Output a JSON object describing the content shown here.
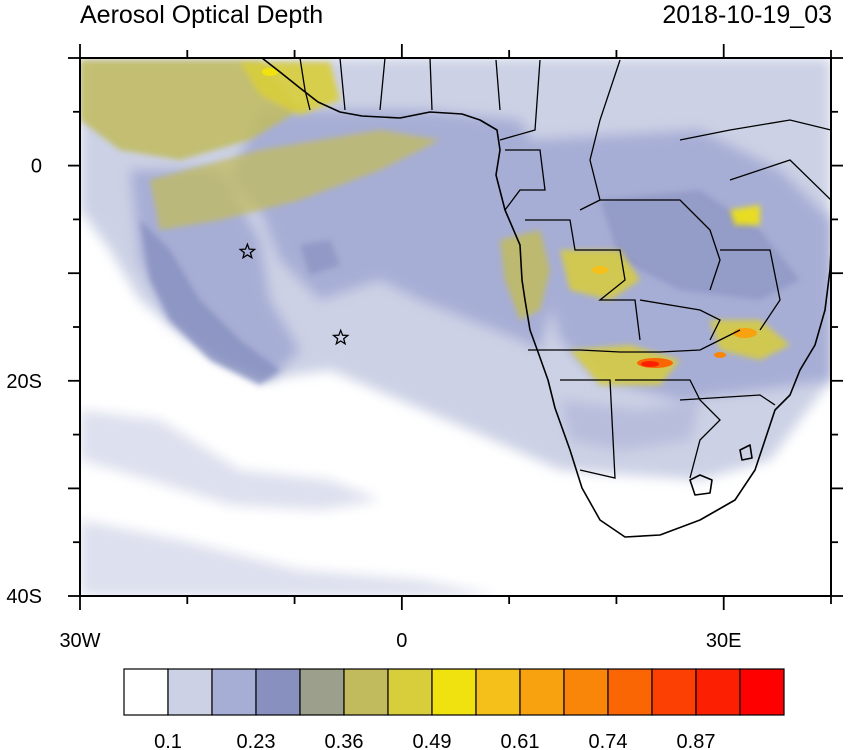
{
  "title": "Aerosol Optical Depth",
  "timestamp": "2018-10-19_03",
  "map": {
    "lon_range": [
      -30,
      40
    ],
    "lat_range": [
      -40,
      10
    ],
    "lon_ticks": [
      {
        "value": -30,
        "label": "30W"
      },
      {
        "value": 0,
        "label": "0"
      },
      {
        "value": 30,
        "label": "30E"
      }
    ],
    "lat_ticks": [
      {
        "value": 0,
        "label": "0"
      },
      {
        "value": -20,
        "label": "20S"
      },
      {
        "value": -40,
        "label": "40S"
      }
    ],
    "stations": [
      {
        "lon": -14.4,
        "lat": -8.0
      },
      {
        "lon": -5.7,
        "lat": -16.0
      }
    ]
  },
  "colorbar": {
    "labels": [
      "0.1",
      "0.23",
      "0.36",
      "0.49",
      "0.61",
      "0.74",
      "0.87"
    ],
    "colors": [
      "#ffffff",
      "#ccd1e5",
      "#a7aed5",
      "#8790bf",
      "#9c9f8b",
      "#c1bb5d",
      "#d8cd3b",
      "#f0e20e",
      "#f5c01a",
      "#f7a20e",
      "#f98609",
      "#fb6604",
      "#fc3f02",
      "#fd1f01",
      "#fe0000"
    ]
  }
}
